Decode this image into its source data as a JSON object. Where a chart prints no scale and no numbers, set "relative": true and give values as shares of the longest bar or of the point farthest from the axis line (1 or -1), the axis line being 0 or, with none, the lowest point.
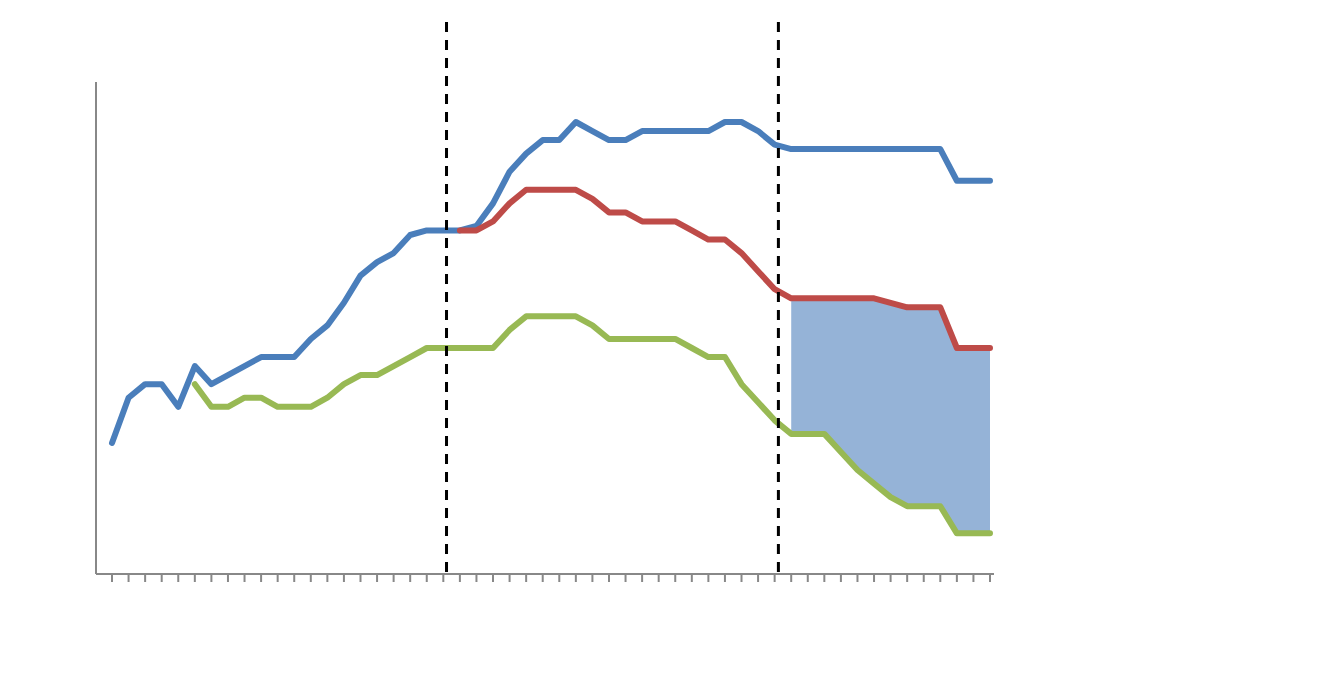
{
  "chart_data": {
    "type": "line",
    "relative": true,
    "categories": [
      null,
      null,
      null,
      null,
      null,
      null,
      null,
      null,
      null,
      null,
      null,
      null,
      null,
      null,
      null,
      null,
      null,
      null,
      null,
      null,
      null,
      null,
      null,
      null,
      null,
      null,
      null,
      null,
      null,
      null,
      null,
      null,
      null,
      null,
      null,
      null,
      null,
      null,
      null,
      null,
      null,
      null,
      null,
      null,
      null,
      null,
      null,
      null,
      null,
      null,
      null,
      null,
      null,
      null
    ],
    "series": [
      {
        "color": "#4a7ebb",
        "values": [
          0.29,
          0.39,
          0.42,
          0.42,
          0.37,
          0.46,
          0.42,
          0.44,
          0.46,
          0.48,
          0.48,
          0.48,
          0.52,
          0.55,
          0.6,
          0.66,
          0.69,
          0.71,
          0.75,
          0.76,
          0.76,
          0.76,
          0.77,
          0.82,
          0.89,
          0.93,
          0.96,
          0.96,
          1,
          0.98,
          0.96,
          0.96,
          0.98,
          0.98,
          0.98,
          0.98,
          0.98,
          1,
          1,
          0.98,
          0.95,
          0.94,
          0.94,
          0.94,
          0.94,
          0.94,
          0.94,
          0.94,
          0.94,
          0.94,
          0.94,
          0.87,
          0.87,
          0.87
        ]
      },
      {
        "color": "#be4b48",
        "values": [
          null,
          null,
          null,
          null,
          null,
          null,
          null,
          null,
          null,
          null,
          null,
          null,
          null,
          null,
          null,
          null,
          null,
          null,
          null,
          null,
          null,
          0.76,
          0.76,
          0.78,
          0.82,
          0.85,
          0.85,
          0.85,
          0.85,
          0.83,
          0.8,
          0.8,
          0.78,
          0.78,
          0.78,
          0.76,
          0.74,
          0.74,
          0.71,
          0.67,
          0.63,
          0.61,
          0.61,
          0.61,
          0.61,
          0.61,
          0.61,
          0.6,
          0.59,
          0.59,
          0.59,
          0.5,
          0.5,
          0.5
        ],
        "lower": [
          null,
          null,
          null,
          null,
          null,
          null,
          null,
          null,
          null,
          null,
          null,
          null,
          null,
          null,
          null,
          null,
          null,
          null,
          null,
          null,
          null,
          null,
          null,
          null,
          null,
          null,
          null,
          null,
          null,
          null,
          null,
          null,
          null,
          null,
          null,
          null,
          null,
          null,
          null,
          null,
          null,
          0.31,
          0.31,
          0.31,
          0.27,
          0.23,
          0.2,
          0.17,
          0.15,
          0.15,
          0.15,
          0.09,
          0.09,
          0.09
        ],
        "upper": [
          null,
          null,
          null,
          null,
          null,
          null,
          null,
          null,
          null,
          null,
          null,
          null,
          null,
          null,
          null,
          null,
          null,
          null,
          null,
          null,
          null,
          null,
          null,
          null,
          null,
          null,
          null,
          null,
          null,
          null,
          null,
          null,
          null,
          null,
          null,
          null,
          null,
          null,
          null,
          null,
          null,
          0.61,
          0.61,
          0.61,
          0.61,
          0.61,
          0.61,
          0.6,
          0.59,
          0.59,
          0.59,
          0.5,
          0.5,
          0.5
        ]
      },
      {
        "color": "#98b954",
        "values": [
          null,
          null,
          null,
          null,
          null,
          0.42,
          0.37,
          0.37,
          0.39,
          0.39,
          0.37,
          0.37,
          0.37,
          0.39,
          0.42,
          0.44,
          0.44,
          0.46,
          0.48,
          0.5,
          0.5,
          0.5,
          0.5,
          0.5,
          0.54,
          0.57,
          0.57,
          0.57,
          0.57,
          0.55,
          0.52,
          0.52,
          0.52,
          0.52,
          0.52,
          0.5,
          0.48,
          0.48,
          0.42,
          0.38,
          0.34,
          0.31,
          0.31,
          0.31,
          0.27,
          0.23,
          0.2,
          0.17,
          0.15,
          0.15,
          0.15,
          0.09,
          0.09,
          0.09
        ]
      }
    ]
  }
}
